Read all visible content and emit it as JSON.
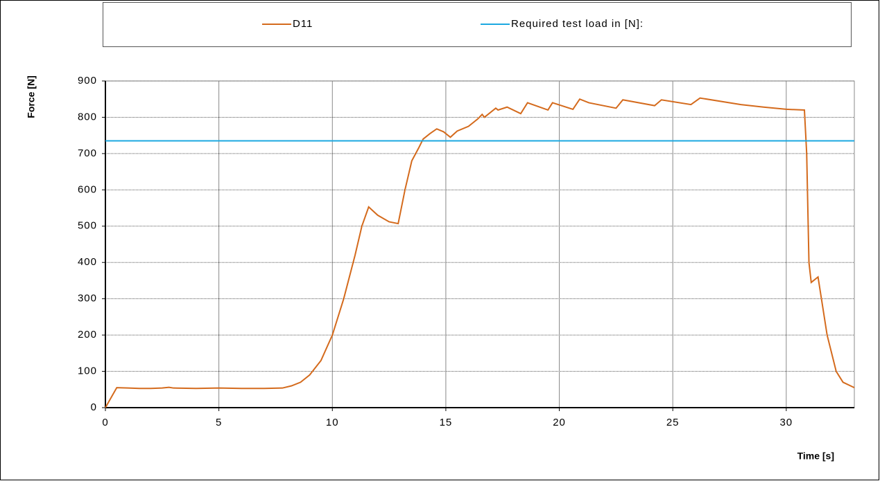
{
  "chart_data": {
    "type": "line",
    "xlabel": "Time [s]",
    "ylabel": "Force [N]",
    "x": [
      0,
      0.5,
      1,
      1.5,
      2,
      2.5,
      2.8,
      3,
      4,
      5,
      6,
      7,
      7.8,
      8.2,
      8.6,
      9,
      9.5,
      10,
      10.5,
      11,
      11.3,
      11.6,
      12,
      12.5,
      12.9,
      13.2,
      13.5,
      13.8,
      14,
      14.3,
      14.6,
      14.9,
      15.2,
      15.5,
      16,
      16.4,
      16.6,
      16.7,
      17,
      17.2,
      17.3,
      17.7,
      18.3,
      18.6,
      19.5,
      19.7,
      20.6,
      20.9,
      21.3,
      22.5,
      22.8,
      24.2,
      24.5,
      25.8,
      26.2,
      28,
      29,
      30,
      30.8,
      30.9,
      31,
      31.1,
      31.4,
      31.8,
      32.2,
      32.5,
      33
    ],
    "series": [
      {
        "name": "D11",
        "color": "#d46a1c",
        "values": [
          0,
          55,
          54,
          53,
          53,
          54,
          56,
          54,
          53,
          54,
          53,
          53,
          54,
          60,
          70,
          90,
          130,
          200,
          300,
          420,
          500,
          553,
          530,
          512,
          507,
          600,
          680,
          715,
          740,
          755,
          768,
          760,
          745,
          762,
          775,
          795,
          808,
          800,
          815,
          825,
          820,
          828,
          810,
          840,
          820,
          840,
          822,
          850,
          840,
          825,
          848,
          832,
          848,
          835,
          853,
          835,
          828,
          822,
          820,
          700,
          400,
          345,
          360,
          200,
          100,
          70,
          55
        ]
      },
      {
        "name": "Required test load in [N]:",
        "color": "#1ba8e0",
        "values": [
          735,
          735,
          735,
          735,
          735,
          735,
          735,
          735,
          735,
          735,
          735,
          735,
          735,
          735,
          735,
          735,
          735,
          735,
          735,
          735,
          735,
          735,
          735,
          735,
          735,
          735,
          735,
          735,
          735,
          735,
          735,
          735,
          735,
          735,
          735,
          735,
          735,
          735,
          735,
          735,
          735,
          735,
          735,
          735,
          735,
          735,
          735,
          735,
          735,
          735,
          735,
          735,
          735,
          735,
          735,
          735,
          735,
          735,
          735,
          735,
          735,
          735,
          735,
          735,
          735,
          735,
          735
        ]
      }
    ],
    "xlim": [
      0,
      33
    ],
    "xticks": [
      0,
      5,
      10,
      15,
      20,
      25,
      30
    ],
    "ylim": [
      0,
      900
    ],
    "yticks": [
      0,
      100,
      200,
      300,
      400,
      500,
      600,
      700,
      800,
      900
    ],
    "grid": true,
    "legend": "top"
  }
}
